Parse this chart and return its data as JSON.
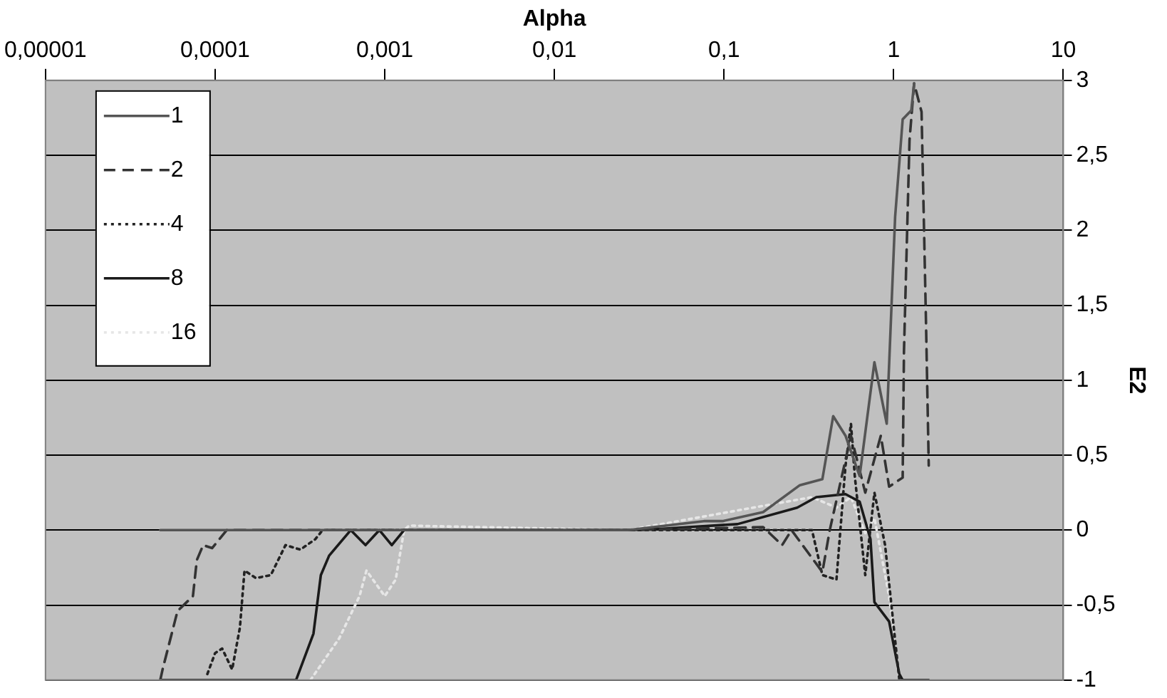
{
  "chart_data": {
    "type": "line",
    "xlabel": "Alpha",
    "ylabel": "E2",
    "log": "x",
    "xlim": [
      1e-05,
      10
    ],
    "xticks": [
      {
        "value": 1e-05,
        "label": "0,00001"
      },
      {
        "value": 0.0001,
        "label": "0,0001"
      },
      {
        "value": 0.001,
        "label": "0,001"
      },
      {
        "value": 0.01,
        "label": "0,01"
      },
      {
        "value": 0.1,
        "label": "0,1"
      },
      1,
      10
    ],
    "ylim": [
      -1,
      3
    ],
    "yticks": [
      -1,
      {
        "value": -0.5,
        "label": "-0,5"
      },
      0,
      {
        "value": 0.5,
        "label": "0,5"
      },
      1,
      {
        "value": 1.5,
        "label": "1,5"
      },
      2,
      {
        "value": 2.5,
        "label": "2,5"
      },
      3
    ],
    "grid": "y",
    "legend": "top left",
    "marker": "none",
    "series": [
      {
        "name": "1",
        "color": "#555555",
        "line_style": "solid",
        "x": [
          4.75e-05,
          0.027,
          0.076,
          0.098,
          0.17,
          0.28,
          0.38,
          0.44,
          0.52,
          0.63,
          0.77,
          0.91,
          1.02,
          1.13,
          1.27,
          1.32
        ],
        "values": [
          0,
          0,
          0.06,
          0.06,
          0.12,
          0.3,
          0.34,
          0.76,
          0.63,
          0.36,
          1.12,
          0.71,
          2.09,
          2.74,
          2.8,
          2.98
        ]
      },
      {
        "name": "2",
        "color": "#333333",
        "line_style": "dashed",
        "x": [
          4.75e-05,
          4.9e-05,
          6e-05,
          7.4e-05,
          7.8e-05,
          8.5e-05,
          9.6e-05,
          0.000117,
          0.027,
          0.17,
          0.22,
          0.25,
          0.38,
          0.42,
          0.56,
          0.68,
          0.84,
          0.94,
          1.13,
          1.15,
          1.24,
          1.32,
          1.46,
          1.55,
          1.61
        ],
        "values": [
          -1,
          -0.93,
          -0.54,
          -0.44,
          -0.2,
          -0.1,
          -0.12,
          0,
          0,
          0.02,
          -0.1,
          0,
          -0.28,
          0,
          0.63,
          0.25,
          0.63,
          0.29,
          0.35,
          1.19,
          2.6,
          2.98,
          2.79,
          1.4,
          0.43
        ]
      },
      {
        "name": "4",
        "color": "#222222",
        "line_style": "dotted",
        "x": [
          9e-05,
          0.0001,
          0.00011,
          0.000126,
          0.00014,
          0.000149,
          0.000174,
          0.000213,
          0.00026,
          0.000318,
          0.00039,
          0.00043,
          0.33,
          0.38,
          0.46,
          0.52,
          0.56,
          0.59,
          0.68,
          0.77,
          0.89,
          1.08
        ],
        "values": [
          -0.96,
          -0.82,
          -0.79,
          -0.93,
          -0.65,
          -0.27,
          -0.32,
          -0.3,
          -0.1,
          -0.13,
          -0.06,
          0,
          0,
          -0.3,
          -0.33,
          0.43,
          0.71,
          0.36,
          -0.3,
          0.25,
          -0.1,
          -1
        ]
      },
      {
        "name": "8",
        "color": "#1a1a1a",
        "line_style": "solid",
        "x": [
          4.75e-05,
          0.0003,
          0.00038,
          0.00042,
          0.00047,
          0.00063,
          0.00077,
          0.00093,
          0.0011,
          0.0013,
          0.027,
          0.044,
          0.12,
          0.27,
          0.35,
          0.52,
          0.63,
          0.73,
          0.77,
          0.94,
          1.08,
          1.13,
          1.61
        ],
        "values": [
          -1,
          -1,
          -0.69,
          -0.3,
          -0.17,
          0,
          -0.1,
          0,
          -0.1,
          0,
          0,
          0.01,
          0.04,
          0.15,
          0.22,
          0.24,
          0.19,
          -0.06,
          -0.48,
          -0.61,
          -0.96,
          -1,
          -1
        ]
      },
      {
        "name": "16",
        "color": "#e6e6e6",
        "line_style": "dotted",
        "x": [
          0.000365,
          0.00054,
          0.00071,
          0.00078,
          0.001,
          0.00116,
          0.0013,
          0.00139,
          0.027,
          0.33,
          0.46,
          0.56,
          0.68,
          0.77,
          0.94,
          1.08
        ],
        "values": [
          -1,
          -0.72,
          -0.44,
          -0.27,
          -0.44,
          -0.33,
          0,
          0.03,
          0,
          0.22,
          0.15,
          0.22,
          -0.02,
          0.08,
          -0.44,
          -1
        ]
      }
    ]
  }
}
